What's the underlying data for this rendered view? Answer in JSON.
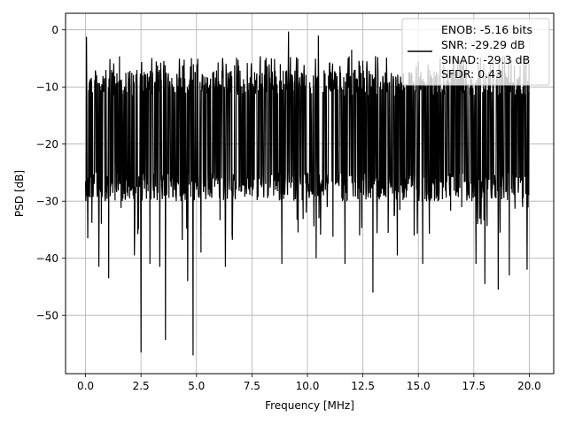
{
  "chart_data": {
    "type": "line",
    "xlabel": "Frequency [MHz]",
    "ylabel": "PSD [dB]",
    "xlim": [
      -0.9,
      21.1
    ],
    "ylim": [
      -60.2,
      2.9
    ],
    "xticks": [
      0.0,
      2.5,
      5.0,
      7.5,
      10.0,
      12.5,
      15.0,
      17.5,
      20.0
    ],
    "xtick_labels": [
      "0.0",
      "2.5",
      "5.0",
      "7.5",
      "10.0",
      "12.5",
      "15.0",
      "17.5",
      "20.0"
    ],
    "yticks": [
      0,
      -10,
      -20,
      -30,
      -40,
      -50
    ],
    "ytick_labels": [
      "0",
      "−10",
      "−20",
      "−30",
      "−40",
      "−50"
    ],
    "grid": true,
    "legend_position": "top-right",
    "legend": [
      {
        "label": "ENOB: -5.16 bits",
        "has_line": false
      },
      {
        "label": "SNR: -29.29 dB",
        "has_line": true
      },
      {
        "label": "SINAD: -29.3 dB",
        "has_line": false
      },
      {
        "label": "SFDR: 0.43",
        "has_line": false
      }
    ],
    "series": [
      {
        "line_color": "#000000",
        "x_range": [
          0.0,
          20.0
        ],
        "band_top_db": -7,
        "band_bottom_db": -27,
        "peaks": [
          {
            "x": 0.05,
            "y": -1.2
          },
          {
            "x": 9.15,
            "y": -0.3
          },
          {
            "x": 10.5,
            "y": -1.0
          },
          {
            "x": 12.0,
            "y": -3.5
          },
          {
            "x": 15.0,
            "y": -5.5
          }
        ],
        "dips": [
          {
            "x": 0.1,
            "y": -36.5
          },
          {
            "x": 0.6,
            "y": -41.5
          },
          {
            "x": 1.05,
            "y": -43.5
          },
          {
            "x": 2.2,
            "y": -39.5
          },
          {
            "x": 2.5,
            "y": -56.5
          },
          {
            "x": 2.9,
            "y": -41.0
          },
          {
            "x": 3.35,
            "y": -41.5
          },
          {
            "x": 3.6,
            "y": -54.3
          },
          {
            "x": 4.6,
            "y": -44.0
          },
          {
            "x": 4.85,
            "y": -57.0
          },
          {
            "x": 5.2,
            "y": -39.0
          },
          {
            "x": 6.3,
            "y": -41.5
          },
          {
            "x": 8.85,
            "y": -41.0
          },
          {
            "x": 10.4,
            "y": -40.0
          },
          {
            "x": 11.7,
            "y": -41.0
          },
          {
            "x": 12.95,
            "y": -46.0
          },
          {
            "x": 14.05,
            "y": -39.5
          },
          {
            "x": 15.2,
            "y": -41.0
          },
          {
            "x": 17.6,
            "y": -41.0
          },
          {
            "x": 18.0,
            "y": -44.5
          },
          {
            "x": 18.6,
            "y": -45.5
          },
          {
            "x": 19.1,
            "y": -43.0
          },
          {
            "x": 19.9,
            "y": -42.0
          }
        ]
      }
    ]
  }
}
